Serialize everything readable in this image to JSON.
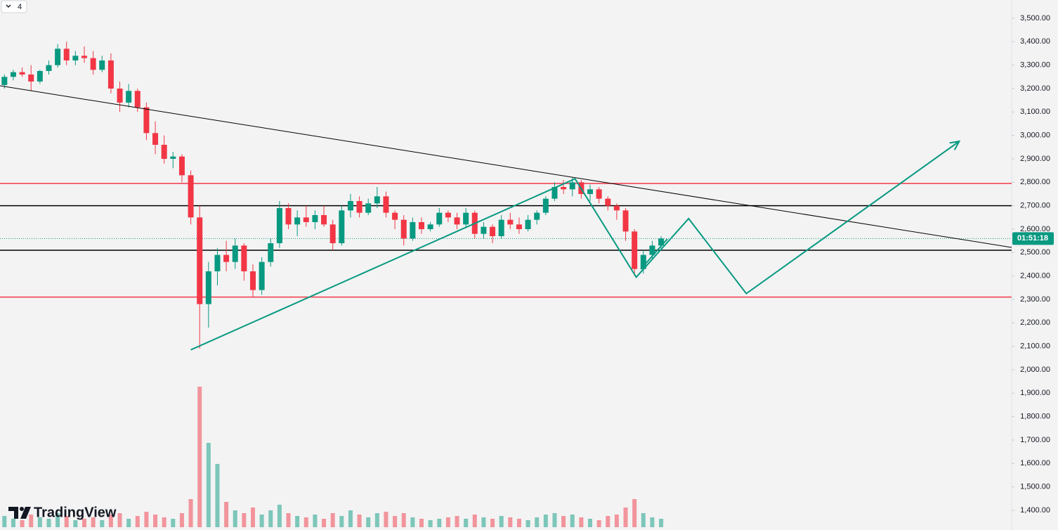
{
  "chart_data": {
    "type": "candlestick",
    "interval_badge": "4",
    "watermark": "TradingView",
    "countdown": "01:51:18",
    "up_color": "#089981",
    "down_color": "#f23645",
    "xlim": [
      0,
      114
    ],
    "ylim": [
      1316,
      3578
    ],
    "yticks": [
      {
        "value": 3500,
        "label": "3,500.00"
      },
      {
        "value": 3400,
        "label": "3,400.00"
      },
      {
        "value": 3300,
        "label": "3,300.00"
      },
      {
        "value": 3200,
        "label": "3,200.00"
      },
      {
        "value": 3100,
        "label": "3,100.00"
      },
      {
        "value": 3000,
        "label": "3,000.00"
      },
      {
        "value": 2900,
        "label": "2,900.00"
      },
      {
        "value": 2800,
        "label": "2,800.00"
      },
      {
        "value": 2700,
        "label": "2,700.00"
      },
      {
        "value": 2600,
        "label": "2,600.00"
      },
      {
        "value": 2500,
        "label": "2,500.00"
      },
      {
        "value": 2400,
        "label": "2,400.00"
      },
      {
        "value": 2300,
        "label": "2,300.00"
      },
      {
        "value": 2200,
        "label": "2,200.00"
      },
      {
        "value": 2100,
        "label": "2,100.00"
      },
      {
        "value": 2000,
        "label": "2,000.00"
      },
      {
        "value": 1900,
        "label": "1,900.00"
      },
      {
        "value": 1800,
        "label": "1,800.00"
      },
      {
        "value": 1700,
        "label": "1,700.00"
      },
      {
        "value": 1600,
        "label": "1,600.00"
      },
      {
        "value": 1500,
        "label": "1,500.00"
      },
      {
        "value": 1400,
        "label": "1,400.00"
      }
    ],
    "open": [
      3215,
      3250,
      3270,
      3260,
      3230,
      3275,
      3300,
      3370,
      3320,
      3340,
      3330,
      3280,
      3320,
      3200,
      3140,
      3190,
      3120,
      3010,
      2960,
      2900,
      2910,
      2830,
      2650,
      2280,
      2420,
      2490,
      2460,
      2530,
      2420,
      2340,
      2460,
      2540,
      2690,
      2620,
      2650,
      2630,
      2660,
      2620,
      2540,
      2680,
      2720,
      2670,
      2710,
      2740,
      2670,
      2640,
      2560,
      2630,
      2600,
      2620,
      2670,
      2650,
      2620,
      2670,
      2580,
      2610,
      2570,
      2640,
      2620,
      2600,
      2640,
      2670,
      2730,
      2780,
      2770,
      2800,
      2750,
      2770,
      2730,
      2700,
      2680,
      2590,
      2430,
      2490,
      2530
    ],
    "high": [
      3260,
      3280,
      3290,
      3300,
      3280,
      3320,
      3390,
      3400,
      3360,
      3380,
      3360,
      3340,
      3350,
      3230,
      3220,
      3200,
      3140,
      3060,
      3000,
      2930,
      2920,
      2850,
      2700,
      2460,
      2520,
      2550,
      2560,
      2540,
      2450,
      2480,
      2560,
      2720,
      2710,
      2680,
      2700,
      2680,
      2700,
      2640,
      2700,
      2750,
      2740,
      2730,
      2780,
      2760,
      2680,
      2660,
      2650,
      2650,
      2630,
      2690,
      2680,
      2670,
      2690,
      2680,
      2630,
      2620,
      2660,
      2670,
      2650,
      2660,
      2680,
      2740,
      2800,
      2810,
      2820,
      2810,
      2790,
      2780,
      2740,
      2710,
      2690,
      2600,
      2510,
      2550,
      2570
    ],
    "low": [
      3200,
      3235,
      3250,
      3190,
      3220,
      3260,
      3290,
      3300,
      3300,
      3310,
      3260,
      3270,
      3180,
      3100,
      3120,
      3100,
      2980,
      2920,
      2880,
      2860,
      2800,
      2620,
      2090,
      2180,
      2360,
      2420,
      2430,
      2380,
      2310,
      2320,
      2440,
      2520,
      2600,
      2570,
      2610,
      2600,
      2610,
      2510,
      2530,
      2650,
      2650,
      2660,
      2690,
      2650,
      2600,
      2530,
      2550,
      2580,
      2590,
      2610,
      2630,
      2600,
      2610,
      2560,
      2560,
      2540,
      2560,
      2600,
      2580,
      2590,
      2620,
      2660,
      2720,
      2750,
      2740,
      2730,
      2720,
      2710,
      2680,
      2640,
      2550,
      2400,
      2410,
      2470,
      2520
    ],
    "close": [
      3250,
      3270,
      3260,
      3230,
      3275,
      3300,
      3370,
      3320,
      3340,
      3330,
      3280,
      3320,
      3200,
      3140,
      3190,
      3120,
      3010,
      2960,
      2900,
      2910,
      2830,
      2650,
      2280,
      2420,
      2490,
      2460,
      2530,
      2420,
      2340,
      2460,
      2540,
      2690,
      2620,
      2650,
      2630,
      2660,
      2620,
      2540,
      2680,
      2720,
      2670,
      2710,
      2740,
      2670,
      2640,
      2560,
      2630,
      2600,
      2620,
      2670,
      2650,
      2620,
      2670,
      2580,
      2610,
      2570,
      2640,
      2620,
      2600,
      2640,
      2670,
      2730,
      2780,
      2770,
      2800,
      2750,
      2770,
      2730,
      2700,
      2680,
      2590,
      2430,
      2490,
      2530,
      2560
    ],
    "volume": [
      8,
      6,
      5,
      9,
      7,
      6,
      10,
      8,
      5,
      6,
      7,
      5,
      9,
      10,
      6,
      8,
      11,
      9,
      7,
      6,
      10,
      20,
      100,
      60,
      45,
      18,
      12,
      10,
      14,
      9,
      12,
      16,
      10,
      8,
      7,
      9,
      6,
      10,
      8,
      12,
      9,
      7,
      10,
      11,
      8,
      10,
      7,
      6,
      5,
      6,
      7,
      8,
      6,
      9,
      7,
      6,
      8,
      7,
      6,
      5,
      7,
      9,
      10,
      8,
      9,
      7,
      6,
      5,
      8,
      9,
      14,
      20,
      10,
      7,
      6
    ],
    "levels": [
      {
        "value": 2795,
        "color": "#f23645"
      },
      {
        "value": 2700,
        "color": "#000000"
      },
      {
        "value": 2510,
        "color": "#000000"
      },
      {
        "value": 2310,
        "color": "#f23645"
      }
    ],
    "drawings": [
      {
        "x": [
          0,
          114
        ],
        "y": [
          3212,
          2522
        ],
        "color": "#000000",
        "arrow": false
      },
      {
        "x": [
          21.5,
          64.8,
          71.7,
          77.6,
          84.1,
          108.1
        ],
        "y": [
          2085,
          2815,
          2395,
          2645,
          2325,
          2975
        ],
        "color": "#089981",
        "arrow": true
      },
      {
        "x": [
          72.2,
          75.2
        ],
        "y": [
          2429,
          2558
        ],
        "color": "#089981",
        "arrow": false
      }
    ]
  }
}
